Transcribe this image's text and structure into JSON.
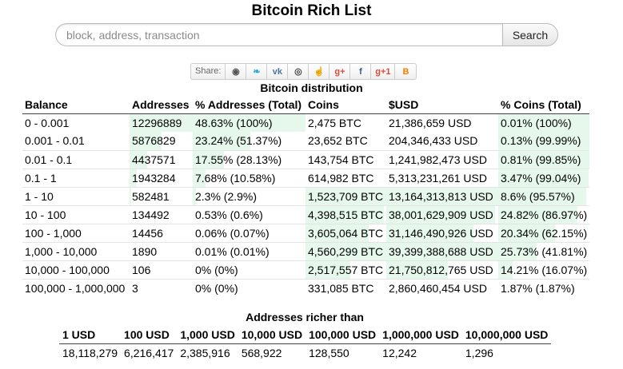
{
  "page": {
    "title": "Bitcoin Rich List"
  },
  "search": {
    "placeholder": "block, address, transaction",
    "button_label": "Search"
  },
  "share": {
    "label": "Share:",
    "buttons": [
      {
        "icon": "reddit-icon",
        "glyph": "◉",
        "color": "#555555"
      },
      {
        "icon": "twitter-icon",
        "glyph": "❧",
        "color": "#2aa9e0"
      },
      {
        "icon": "vk-icon",
        "glyph": "vk",
        "color": "#4c75a3"
      },
      {
        "icon": "weibo-icon",
        "glyph": "◎",
        "color": "#444444"
      },
      {
        "icon": "like-icon",
        "glyph": "☝",
        "color": "#3b5998"
      },
      {
        "icon": "google-plus-icon",
        "glyph": "g+",
        "color": "#dd4b39"
      },
      {
        "icon": "facebook-icon",
        "glyph": "f",
        "color": "#3b5998"
      },
      {
        "icon": "google-plus-one-icon",
        "glyph": "g+1",
        "color": "#dd4b39"
      },
      {
        "icon": "blogger-icon",
        "glyph": "B",
        "color": "#f57d00"
      }
    ]
  },
  "distribution": {
    "title": "Bitcoin distribution",
    "headers": [
      "Balance",
      "Addresses",
      "% Addresses (Total)",
      "Coins",
      "$USD",
      "% Coins (Total)"
    ],
    "rows": [
      {
        "balance": "0 - 0.001",
        "addresses": "12296889",
        "pct_addresses": "48.63% (100%)",
        "coins": "2,475 BTC",
        "usd": "21,386,659 USD",
        "pct_coins": "0.01% (100%)",
        "addr_bar": 1.0,
        "pct_bar": 1.0,
        "coins_bar": 0.0,
        "usd_bar": 0.0,
        "pcoin_bar": 1.0
      },
      {
        "balance": "0.001 - 0.01",
        "addresses": "5876829",
        "pct_addresses": "23.24% (51.37%)",
        "coins": "23,652 BTC",
        "usd": "204,346,433 USD",
        "pct_coins": "0.13% (99.99%)",
        "addr_bar": 0.51,
        "pct_bar": 0.51,
        "coins_bar": 0.0,
        "usd_bar": 0.0,
        "pcoin_bar": 1.0
      },
      {
        "balance": "0.01 - 0.1",
        "addresses": "4437571",
        "pct_addresses": "17.55% (28.13%)",
        "coins": "143,754 BTC",
        "usd": "1,241,982,473 USD",
        "pct_coins": "0.81% (99.85%)",
        "addr_bar": 0.28,
        "pct_bar": 0.28,
        "coins_bar": 0.0,
        "usd_bar": 0.0,
        "pcoin_bar": 1.0
      },
      {
        "balance": "0.1 - 1",
        "addresses": "1943284",
        "pct_addresses": "7.68% (10.58%)",
        "coins": "614,982 BTC",
        "usd": "5,313,231,261 USD",
        "pct_coins": "3.47% (99.04%)",
        "addr_bar": 0.11,
        "pct_bar": 0.11,
        "coins_bar": 0.0,
        "usd_bar": 0.0,
        "pcoin_bar": 0.99
      },
      {
        "balance": "1 - 10",
        "addresses": "582481",
        "pct_addresses": "2.3% (2.9%)",
        "coins": "1,523,709 BTC",
        "usd": "13,164,313,813 USD",
        "pct_coins": "8.6% (95.57%)",
        "addr_bar": 0.03,
        "pct_bar": 0.03,
        "coins_bar": 1.0,
        "usd_bar": 1.0,
        "pcoin_bar": 0.96
      },
      {
        "balance": "10 - 100",
        "addresses": "134492",
        "pct_addresses": "0.53% (0.6%)",
        "coins": "4,398,515 BTC",
        "usd": "38,001,629,909 USD",
        "pct_coins": "24.82% (86.97%)",
        "addr_bar": 0.0,
        "pct_bar": 0.0,
        "coins_bar": 0.97,
        "usd_bar": 0.97,
        "pcoin_bar": 0.87
      },
      {
        "balance": "100 - 1,000",
        "addresses": "14456",
        "pct_addresses": "0.06% (0.07%)",
        "coins": "3,605,064 BTC",
        "usd": "31,146,490,926 USD",
        "pct_coins": "20.34% (62.15%)",
        "addr_bar": 0.0,
        "pct_bar": 0.0,
        "coins_bar": 0.78,
        "usd_bar": 0.78,
        "pcoin_bar": 0.62
      },
      {
        "balance": "1,000 - 10,000",
        "addresses": "1890",
        "pct_addresses": "0.01% (0.01%)",
        "coins": "4,560,299 BTC",
        "usd": "39,399,388,688 USD",
        "pct_coins": "25.73% (41.81%)",
        "addr_bar": 0.0,
        "pct_bar": 0.0,
        "coins_bar": 1.0,
        "usd_bar": 1.0,
        "pcoin_bar": 0.42
      },
      {
        "balance": "10,000 - 100,000",
        "addresses": "106",
        "pct_addresses": "0% (0%)",
        "coins": "2,517,557 BTC",
        "usd": "21,750,812,765 USD",
        "pct_coins": "14.21% (16.07%)",
        "addr_bar": 0.0,
        "pct_bar": 0.0,
        "coins_bar": 0.55,
        "usd_bar": 0.55,
        "pcoin_bar": 0.16
      },
      {
        "balance": "100,000 - 1,000,000",
        "addresses": "3",
        "pct_addresses": "0% (0%)",
        "coins": "331,085 BTC",
        "usd": "2,860,460,454 USD",
        "pct_coins": "1.87% (1.87%)",
        "addr_bar": 0.0,
        "pct_bar": 0.0,
        "coins_bar": 0.0,
        "usd_bar": 0.0,
        "pcoin_bar": 0.0
      }
    ]
  },
  "richer": {
    "title": "Addresses richer than",
    "headers": [
      "1 USD",
      "100 USD",
      "1,000 USD",
      "10,000 USD",
      "100,000 USD",
      "1,000,000 USD",
      "10,000,000 USD"
    ],
    "values": [
      "18,118,279",
      "6,216,417",
      "2,385,916",
      "568,922",
      "128,550",
      "12,242",
      "1,296"
    ]
  }
}
